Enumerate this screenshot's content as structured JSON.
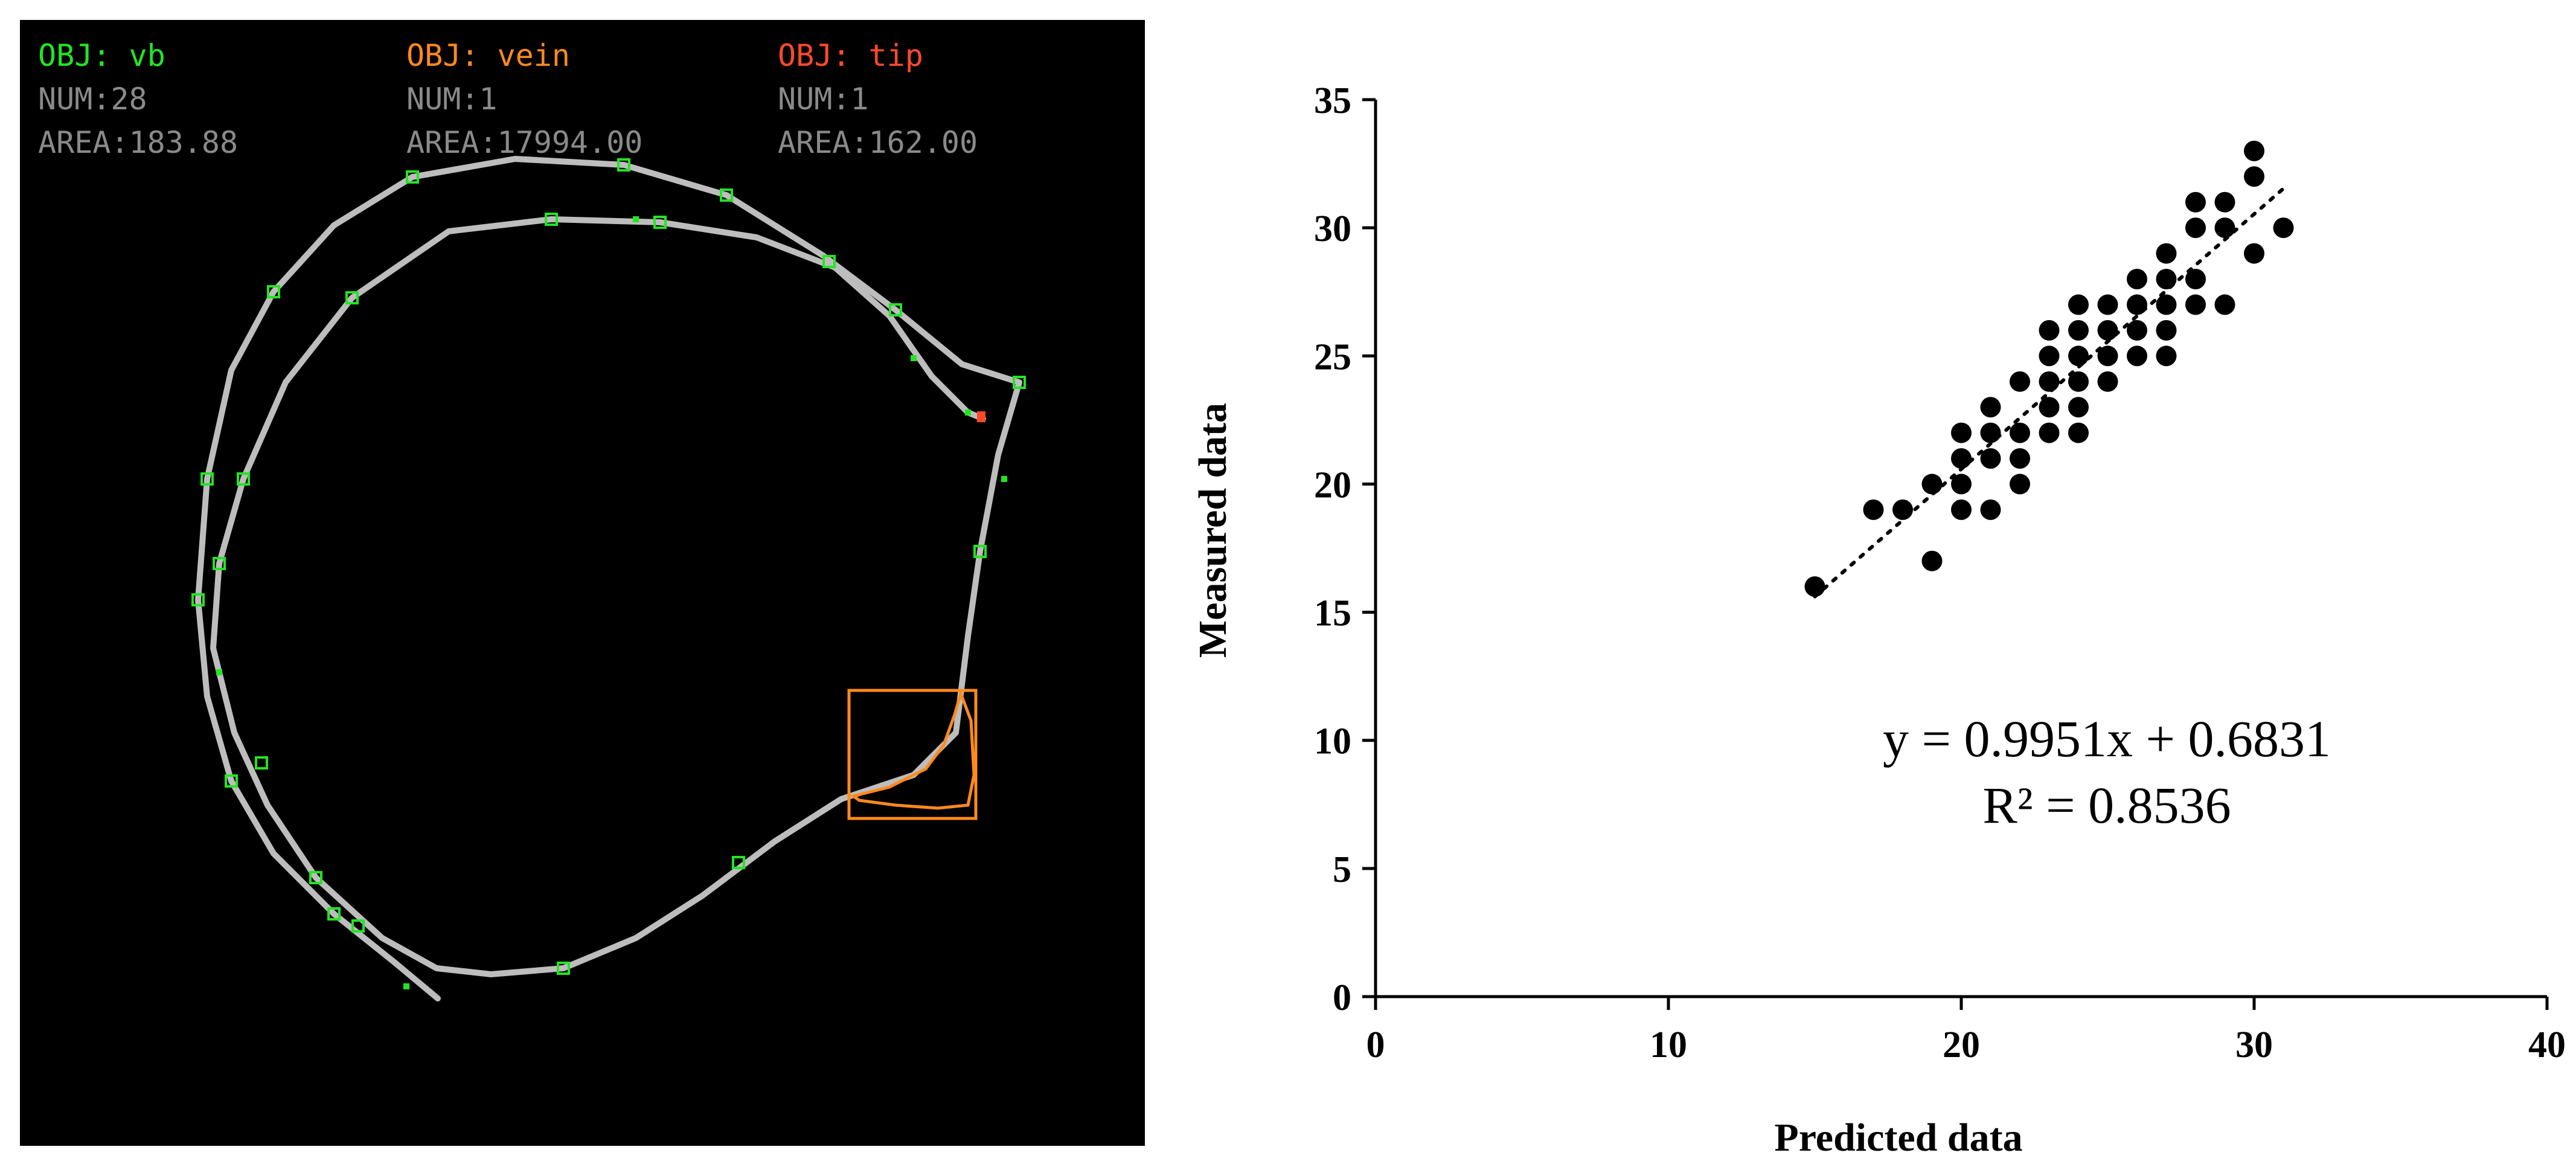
{
  "image_panel": {
    "background": "#000000",
    "objects": [
      {
        "title": "OBJ: vb",
        "num": "NUM:28",
        "area": "AREA:183.88",
        "color": "#22e622"
      },
      {
        "title": "OBJ: vein",
        "num": "NUM:1",
        "area": "AREA:17994.00",
        "color": "#ff8a1e"
      },
      {
        "title": "OBJ: tip",
        "num": "NUM:1",
        "area": "AREA:162.00",
        "color": "#ff4a2a"
      }
    ],
    "stat_color": "#8a8a8a",
    "vein_line_color": "#bdbdbd",
    "vb_marker_color": "#22e622",
    "bbox_color": "#ff8a1e",
    "tip_color": "#ff4a2a"
  },
  "chart_data": {
    "type": "scatter",
    "xlabel": "Predicted data",
    "ylabel": "Measured data",
    "xlim": [
      0,
      40
    ],
    "ylim": [
      0,
      35
    ],
    "xticks": [
      0,
      10,
      20,
      30,
      40
    ],
    "yticks": [
      0,
      5,
      10,
      15,
      20,
      25,
      30,
      35
    ],
    "grid": false,
    "point_color": "#000000",
    "points": [
      [
        15,
        16
      ],
      [
        17,
        19
      ],
      [
        18,
        19
      ],
      [
        19,
        17
      ],
      [
        19,
        20
      ],
      [
        20,
        19
      ],
      [
        20,
        20
      ],
      [
        20,
        21
      ],
      [
        20,
        22
      ],
      [
        21,
        19
      ],
      [
        21,
        21
      ],
      [
        21,
        22
      ],
      [
        21,
        23
      ],
      [
        22,
        20
      ],
      [
        22,
        21
      ],
      [
        22,
        22
      ],
      [
        22,
        24
      ],
      [
        23,
        22
      ],
      [
        23,
        23
      ],
      [
        23,
        24
      ],
      [
        23,
        25
      ],
      [
        23,
        26
      ],
      [
        24,
        22
      ],
      [
        24,
        23
      ],
      [
        24,
        24
      ],
      [
        24,
        25
      ],
      [
        24,
        26
      ],
      [
        24,
        27
      ],
      [
        25,
        24
      ],
      [
        25,
        25
      ],
      [
        25,
        26
      ],
      [
        25,
        27
      ],
      [
        26,
        25
      ],
      [
        26,
        26
      ],
      [
        26,
        27
      ],
      [
        26,
        28
      ],
      [
        27,
        25
      ],
      [
        27,
        26
      ],
      [
        27,
        27
      ],
      [
        27,
        28
      ],
      [
        27,
        29
      ],
      [
        28,
        27
      ],
      [
        28,
        28
      ],
      [
        28,
        30
      ],
      [
        28,
        31
      ],
      [
        29,
        27
      ],
      [
        29,
        30
      ],
      [
        29,
        31
      ],
      [
        30,
        29
      ],
      [
        30,
        32
      ],
      [
        30,
        33
      ],
      [
        31,
        30
      ]
    ],
    "trendline": {
      "slope": 0.9951,
      "intercept": 0.6831,
      "x_range": [
        15,
        31
      ],
      "style": "dotted"
    },
    "annotations": {
      "equation": "y = 0.9951x + 0.6831",
      "r_squared": "R² = 0.8536"
    }
  }
}
